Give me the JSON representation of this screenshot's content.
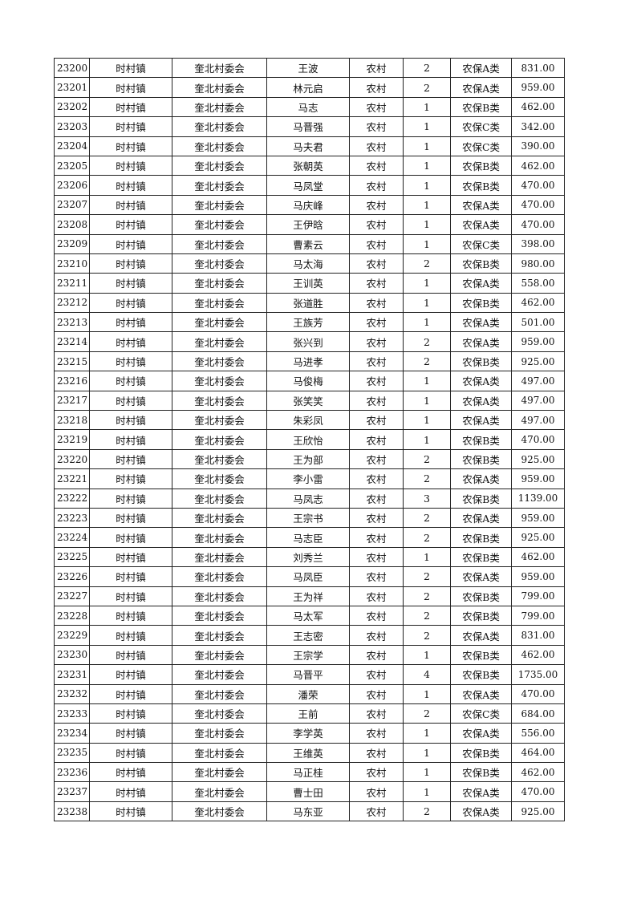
{
  "table": {
    "rows": [
      [
        "23200",
        "时村镇",
        "奎北村委会",
        "王波",
        "农村",
        "2",
        "农保A类",
        "831.00"
      ],
      [
        "23201",
        "时村镇",
        "奎北村委会",
        "林元启",
        "农村",
        "2",
        "农保A类",
        "959.00"
      ],
      [
        "23202",
        "时村镇",
        "奎北村委会",
        "马志",
        "农村",
        "1",
        "农保B类",
        "462.00"
      ],
      [
        "23203",
        "时村镇",
        "奎北村委会",
        "马晋强",
        "农村",
        "1",
        "农保C类",
        "342.00"
      ],
      [
        "23204",
        "时村镇",
        "奎北村委会",
        "马夫君",
        "农村",
        "1",
        "农保C类",
        "390.00"
      ],
      [
        "23205",
        "时村镇",
        "奎北村委会",
        "张朝英",
        "农村",
        "1",
        "农保B类",
        "462.00"
      ],
      [
        "23206",
        "时村镇",
        "奎北村委会",
        "马凤堂",
        "农村",
        "1",
        "农保B类",
        "470.00"
      ],
      [
        "23207",
        "时村镇",
        "奎北村委会",
        "马庆峰",
        "农村",
        "1",
        "农保A类",
        "470.00"
      ],
      [
        "23208",
        "时村镇",
        "奎北村委会",
        "王伊晗",
        "农村",
        "1",
        "农保A类",
        "470.00"
      ],
      [
        "23209",
        "时村镇",
        "奎北村委会",
        "曹素云",
        "农村",
        "1",
        "农保C类",
        "398.00"
      ],
      [
        "23210",
        "时村镇",
        "奎北村委会",
        "马太海",
        "农村",
        "2",
        "农保B类",
        "980.00"
      ],
      [
        "23211",
        "时村镇",
        "奎北村委会",
        "王训英",
        "农村",
        "1",
        "农保A类",
        "558.00"
      ],
      [
        "23212",
        "时村镇",
        "奎北村委会",
        "张道胜",
        "农村",
        "1",
        "农保B类",
        "462.00"
      ],
      [
        "23213",
        "时村镇",
        "奎北村委会",
        "王族芳",
        "农村",
        "1",
        "农保A类",
        "501.00"
      ],
      [
        "23214",
        "时村镇",
        "奎北村委会",
        "张兴到",
        "农村",
        "2",
        "农保A类",
        "959.00"
      ],
      [
        "23215",
        "时村镇",
        "奎北村委会",
        "马进孝",
        "农村",
        "2",
        "农保B类",
        "925.00"
      ],
      [
        "23216",
        "时村镇",
        "奎北村委会",
        "马俊梅",
        "农村",
        "1",
        "农保A类",
        "497.00"
      ],
      [
        "23217",
        "时村镇",
        "奎北村委会",
        "张笑笑",
        "农村",
        "1",
        "农保A类",
        "497.00"
      ],
      [
        "23218",
        "时村镇",
        "奎北村委会",
        "朱彩凤",
        "农村",
        "1",
        "农保A类",
        "497.00"
      ],
      [
        "23219",
        "时村镇",
        "奎北村委会",
        "王欣怡",
        "农村",
        "1",
        "农保B类",
        "470.00"
      ],
      [
        "23220",
        "时村镇",
        "奎北村委会",
        "王为部",
        "农村",
        "2",
        "农保B类",
        "925.00"
      ],
      [
        "23221",
        "时村镇",
        "奎北村委会",
        "李小雷",
        "农村",
        "2",
        "农保A类",
        "959.00"
      ],
      [
        "23222",
        "时村镇",
        "奎北村委会",
        "马凤志",
        "农村",
        "3",
        "农保B类",
        "1139.00"
      ],
      [
        "23223",
        "时村镇",
        "奎北村委会",
        "王宗书",
        "农村",
        "2",
        "农保A类",
        "959.00"
      ],
      [
        "23224",
        "时村镇",
        "奎北村委会",
        "马志臣",
        "农村",
        "2",
        "农保B类",
        "925.00"
      ],
      [
        "23225",
        "时村镇",
        "奎北村委会",
        "刘秀兰",
        "农村",
        "1",
        "农保B类",
        "462.00"
      ],
      [
        "23226",
        "时村镇",
        "奎北村委会",
        "马凤臣",
        "农村",
        "2",
        "农保A类",
        "959.00"
      ],
      [
        "23227",
        "时村镇",
        "奎北村委会",
        "王为祥",
        "农村",
        "2",
        "农保B类",
        "799.00"
      ],
      [
        "23228",
        "时村镇",
        "奎北村委会",
        "马太军",
        "农村",
        "2",
        "农保B类",
        "799.00"
      ],
      [
        "23229",
        "时村镇",
        "奎北村委会",
        "王志密",
        "农村",
        "2",
        "农保A类",
        "831.00"
      ],
      [
        "23230",
        "时村镇",
        "奎北村委会",
        "王宗学",
        "农村",
        "1",
        "农保B类",
        "462.00"
      ],
      [
        "23231",
        "时村镇",
        "奎北村委会",
        "马晋平",
        "农村",
        "4",
        "农保B类",
        "1735.00"
      ],
      [
        "23232",
        "时村镇",
        "奎北村委会",
        "潘荣",
        "农村",
        "1",
        "农保A类",
        "470.00"
      ],
      [
        "23233",
        "时村镇",
        "奎北村委会",
        "王前",
        "农村",
        "2",
        "农保C类",
        "684.00"
      ],
      [
        "23234",
        "时村镇",
        "奎北村委会",
        "李学英",
        "农村",
        "1",
        "农保A类",
        "556.00"
      ],
      [
        "23235",
        "时村镇",
        "奎北村委会",
        "王维英",
        "农村",
        "1",
        "农保B类",
        "464.00"
      ],
      [
        "23236",
        "时村镇",
        "奎北村委会",
        "马正桂",
        "农村",
        "1",
        "农保B类",
        "462.00"
      ],
      [
        "23237",
        "时村镇",
        "奎北村委会",
        "曹士田",
        "农村",
        "1",
        "农保A类",
        "470.00"
      ],
      [
        "23238",
        "时村镇",
        "奎北村委会",
        "马东亚",
        "农村",
        "2",
        "农保A类",
        "925.00"
      ]
    ]
  }
}
